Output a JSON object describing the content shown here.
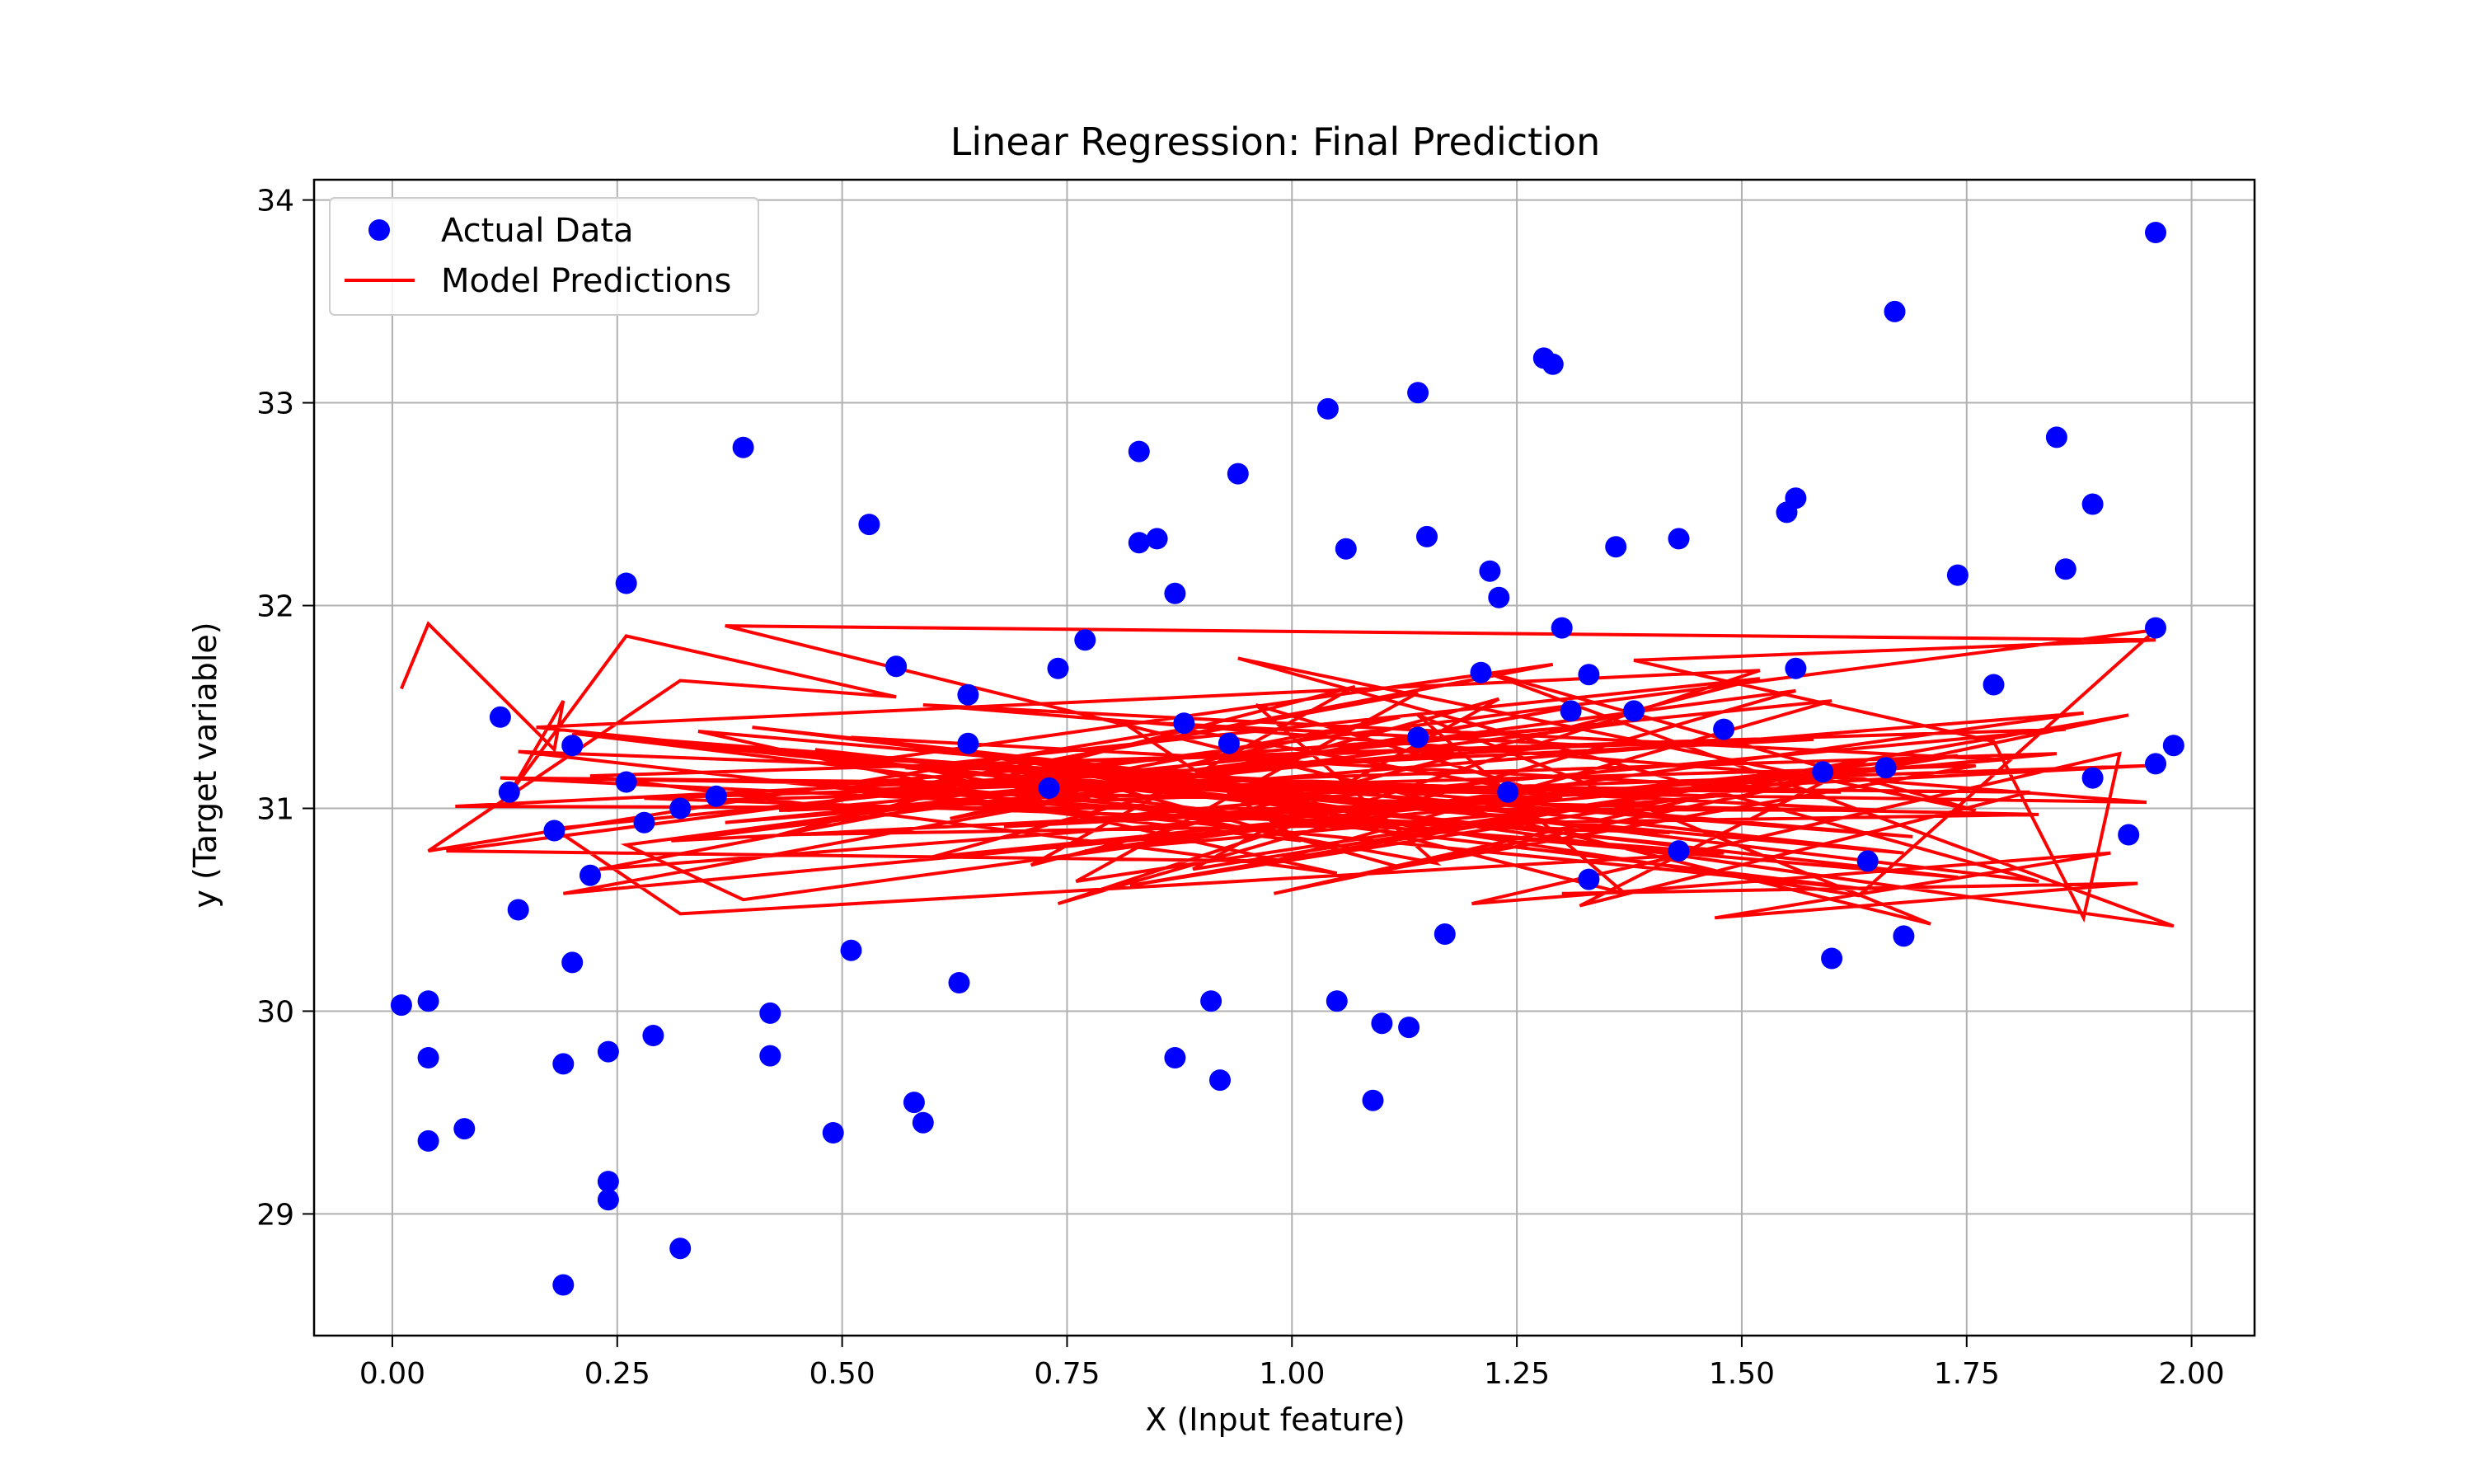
{
  "chart_data": {
    "type": "scatter",
    "title": "Linear Regression: Final Prediction",
    "xlabel": "X (Input feature)",
    "ylabel": "y (Target variable)",
    "xlim": [
      -0.087,
      2.07
    ],
    "ylim": [
      28.4,
      34.1
    ],
    "xticks": [
      0.0,
      0.25,
      0.5,
      0.75,
      1.0,
      1.25,
      1.5,
      1.75,
      2.0
    ],
    "xtick_labels": [
      "0.00",
      "0.25",
      "0.50",
      "0.75",
      "1.00",
      "1.25",
      "1.50",
      "1.75",
      "2.00"
    ],
    "yticks": [
      29,
      30,
      31,
      32,
      33,
      34
    ],
    "ytick_labels": [
      "29",
      "30",
      "31",
      "32",
      "33",
      "34"
    ],
    "grid": true,
    "legend": {
      "placement": "upper-left"
    },
    "colors": {
      "points": "#0000ff",
      "line": "#ff0000",
      "grid": "#b0b0b0"
    },
    "series": [
      {
        "name": "Actual Data",
        "kind": "scatter",
        "color": "#0000ff",
        "x": [
          0.01,
          0.04,
          0.04,
          0.04,
          0.08,
          0.12,
          0.13,
          0.14,
          0.18,
          0.19,
          0.19,
          0.2,
          0.2,
          0.22,
          0.24,
          0.24,
          0.24,
          0.26,
          0.26,
          0.28,
          0.29,
          0.32,
          0.32,
          0.36,
          0.39,
          0.42,
          0.42,
          0.49,
          0.51,
          0.53,
          0.56,
          0.58,
          0.59,
          0.63,
          0.64,
          0.64,
          0.73,
          0.74,
          0.77,
          0.83,
          0.83,
          0.85,
          0.87,
          0.87,
          0.88,
          0.91,
          0.92,
          0.93,
          0.94,
          1.04,
          1.05,
          1.06,
          1.09,
          1.1,
          1.13,
          1.14,
          1.14,
          1.15,
          1.17,
          1.21,
          1.22,
          1.23,
          1.24,
          1.28,
          1.29,
          1.3,
          1.31,
          1.33,
          1.33,
          1.36,
          1.38,
          1.43,
          1.43,
          1.48,
          1.55,
          1.56,
          1.56,
          1.59,
          1.6,
          1.64,
          1.66,
          1.67,
          1.68,
          1.74,
          1.78,
          1.85,
          1.86,
          1.89,
          1.89,
          1.93,
          1.96,
          1.96,
          1.96,
          1.98
        ],
        "y": [
          30.03,
          29.77,
          30.05,
          29.36,
          29.42,
          31.45,
          31.08,
          30.5,
          30.89,
          28.65,
          29.74,
          31.31,
          30.24,
          30.67,
          29.07,
          29.16,
          29.8,
          32.11,
          31.13,
          30.93,
          29.88,
          28.83,
          31.0,
          31.06,
          32.78,
          29.78,
          29.99,
          29.4,
          30.3,
          32.4,
          31.7,
          29.55,
          29.45,
          30.14,
          31.56,
          31.32,
          31.1,
          31.69,
          31.83,
          32.76,
          32.31,
          32.33,
          32.06,
          29.77,
          31.42,
          30.05,
          29.66,
          31.32,
          32.65,
          32.97,
          30.05,
          32.28,
          29.56,
          29.94,
          29.92,
          33.05,
          31.35,
          32.34,
          30.38,
          31.67,
          32.17,
          32.04,
          31.08,
          33.22,
          33.19,
          31.89,
          31.48,
          31.66,
          30.65,
          32.29,
          31.48,
          32.33,
          30.79,
          31.39,
          32.46,
          32.53,
          31.69,
          31.18,
          30.26,
          30.74,
          31.2,
          33.45,
          30.37,
          32.15,
          31.61,
          32.83,
          32.18,
          32.5,
          31.15,
          30.87,
          33.84,
          31.89,
          31.22,
          31.31
        ]
      },
      {
        "name": "Model Predictions",
        "kind": "line",
        "color": "#ff0000",
        "x": [
          0.01,
          0.04,
          0.18,
          0.19,
          0.13,
          0.26,
          0.56,
          0.32,
          0.04,
          0.88,
          1.27,
          0.39,
          0.26,
          1.2,
          1.56,
          0.74,
          1.52,
          0.16,
          1.43,
          0.2,
          1.64,
          0.41,
          1.48,
          0.32,
          0.18,
          1.6,
          0.98,
          0.06,
          1.96,
          1.63,
          0.73,
          1.12,
          1.76,
          0.35,
          1.34,
          0.12,
          1.95,
          0.59,
          1.79,
          0.23,
          1.12,
          0.62,
          1.3,
          0.19,
          1.85,
          0.28,
          1.42,
          0.66,
          1.58,
          0.07,
          1.66,
          0.54,
          1.29,
          0.44,
          1.18,
          0.37,
          1.88,
          0.77,
          1.47,
          0.14,
          1.01,
          0.81,
          1.33,
          0.53,
          1.83,
          0.43,
          1.07,
          0.71,
          1.52,
          0.57,
          1.25,
          0.26,
          1.69,
          0.34,
          1.05,
          0.22,
          1.86,
          0.68,
          1.3,
          0.96,
          1.16,
          0.47,
          1.74,
          0.53,
          1.37,
          0.31,
          1.95,
          0.43,
          1.14,
          0.76,
          1.56,
          0.89,
          1.23,
          0.6,
          1.74,
          0.82,
          1.93,
          0.98,
          1.64,
          1.32,
          1.82,
          0.12,
          1.61,
          0.51,
          1.98,
          1.21,
          1.76,
          0.94,
          1.83,
          0.4,
          1.68,
          0.93,
          1.37,
          1.14,
          1.71,
          0.37,
          1.96,
          1.38,
          1.78,
          1.88,
          1.92,
          1.2,
          1.91,
          1.47,
          1.94,
          1.3
        ],
        "y": [
          31.59,
          31.91,
          31.29,
          31.53,
          31.07,
          31.85,
          31.55,
          31.63,
          30.79,
          31.39,
          31.08,
          30.55,
          30.82,
          31.37,
          31.58,
          30.53,
          31.68,
          31.4,
          30.82,
          31.37,
          30.6,
          31.14,
          30.78,
          30.48,
          30.9,
          31.53,
          30.74,
          30.79,
          31.88,
          30.57,
          31.19,
          30.71,
          31.21,
          31.04,
          30.89,
          31.15,
          31.03,
          31.51,
          31.24,
          30.7,
          31.45,
          30.95,
          31.49,
          30.58,
          31.27,
          31.05,
          30.88,
          31.22,
          31.34,
          31.01,
          30.99,
          31.24,
          31.71,
          30.99,
          31.28,
          30.93,
          31.47,
          30.79,
          31.06,
          31.28,
          30.84,
          31.43,
          31.31,
          31.09,
          30.97,
          30.87,
          31.6,
          30.72,
          31.64,
          31.2,
          30.98,
          31.35,
          30.86,
          31.38,
          30.68,
          31.16,
          31.39,
          30.91,
          31.05,
          31.51,
          30.73,
          31.29,
          30.66,
          31.13,
          31.42,
          30.84,
          31.21,
          30.99,
          31.57,
          30.64,
          31.17,
          30.7,
          31.54,
          30.76,
          31.26,
          30.62,
          31.46,
          30.58,
          31.24,
          30.52,
          31.08,
          31.15,
          31.08,
          31.35,
          30.42,
          31.68,
          30.99,
          31.74,
          30.64,
          31.4,
          30.78,
          31.08,
          30.58,
          31.46,
          30.43,
          31.9,
          31.83,
          31.73,
          31.33,
          30.46,
          31.27,
          30.53,
          30.78,
          30.46,
          30.63,
          30.58
        ]
      }
    ]
  }
}
